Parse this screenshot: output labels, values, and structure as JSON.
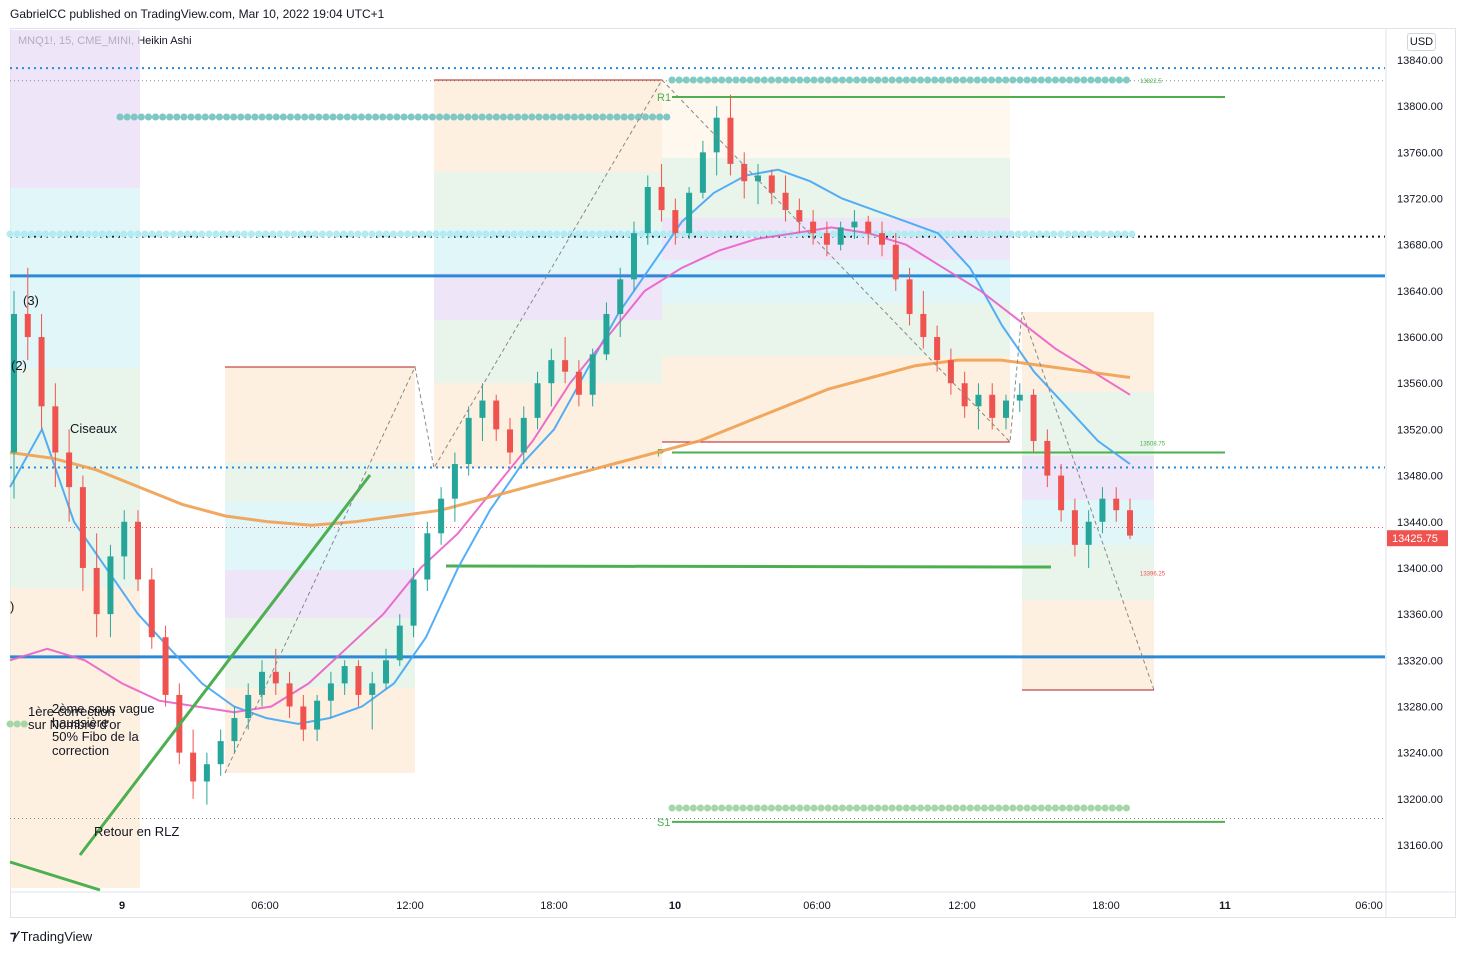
{
  "header": {
    "published": "GabrielCC published on TradingView.com, Mar 10, 2022 19:04 UTC+1"
  },
  "symbol": {
    "label": "MNQ1!, 15, CME_MINI, Heikin Ashi"
  },
  "currency": "USD",
  "footer": {
    "brand": "TradingView",
    "logo_icon": "tradingview-logo-icon"
  },
  "colors": {
    "bull": "#26a69a",
    "bear": "#ef5350",
    "ma_fast": "#42a5f5",
    "ma_mid": "#e95fc8",
    "ma_slow": "#f0a050",
    "level_blue": "#2a8ad8",
    "green_line": "#4caf50"
  },
  "chart_data": {
    "type": "candlestick",
    "chart_style": "Heikin Ashi",
    "y_axis": {
      "min": 13120,
      "max": 13870,
      "ticks": [
        13840,
        13800,
        13760,
        13720,
        13680,
        13640,
        13600,
        13560,
        13520,
        13480,
        13440,
        13400,
        13360,
        13320,
        13280,
        13240,
        13200,
        13160
      ],
      "tick_labels": [
        "13840.00",
        "13800.00",
        "13760.00",
        "13720.00",
        "13680.00",
        "13640.00",
        "13600.00",
        "13560.00",
        "13520.00",
        "13480.00",
        "13440.00",
        "13400.00",
        "13360.00",
        "13320.00",
        "13280.00",
        "13240.00",
        "13200.00",
        "13160.00"
      ]
    },
    "x_axis": {
      "ticks": [
        {
          "label": "9",
          "bold": true
        },
        {
          "label": "06:00"
        },
        {
          "label": "12:00"
        },
        {
          "label": "18:00"
        },
        {
          "label": "10",
          "bold": true
        },
        {
          "label": "06:00"
        },
        {
          "label": "12:00"
        },
        {
          "label": "18:00"
        },
        {
          "label": "11",
          "bold": true
        },
        {
          "label": "06:00"
        }
      ]
    },
    "last_price": {
      "value": 13425.75,
      "label": "13425.75"
    },
    "pivots": [
      {
        "name": "R1",
        "value": 13808
      },
      {
        "name": "P",
        "value": 13500
      },
      {
        "name": "S1",
        "value": 13180
      }
    ],
    "level_labels": [
      {
        "text": "13822.5",
        "value": 13822.5
      },
      {
        "text": "13508.75",
        "value": 13508.75
      },
      {
        "text": "13396.25",
        "value": 13396.25
      }
    ],
    "annotations": [
      {
        "text": "(3)"
      },
      {
        "text": "(2)"
      },
      {
        "text": ")"
      },
      {
        "text": "Ciseaux"
      },
      {
        "text": "1ère correction"
      },
      {
        "text": "sur Nombre d'or"
      },
      {
        "text": "2ème sous vague"
      },
      {
        "text": "haussière"
      },
      {
        "text": "50% Fibo de la"
      },
      {
        "text": "correction"
      },
      {
        "text": "Retour en RLZ"
      }
    ],
    "horizontal_levels": [
      {
        "value": 13833,
        "style": "dotted",
        "color": "#2a8ad8"
      },
      {
        "value": 13822,
        "style": "dotted-thin",
        "color": "#888888"
      },
      {
        "value": 13687,
        "style": "dotted",
        "color": "#131722"
      },
      {
        "value": 13653,
        "style": "solid",
        "color": "#2a8ad8"
      },
      {
        "value": 13487,
        "style": "dotted",
        "color": "#2a8ad8"
      },
      {
        "value": 13435,
        "style": "dotted-thin",
        "color": "#ef5350"
      },
      {
        "value": 13323,
        "style": "solid",
        "color": "#2a8ad8"
      },
      {
        "value": 13183,
        "style": "dotted-thin",
        "color": "#888888"
      }
    ],
    "candles": [
      [
        13500,
        13640,
        13460,
        13620
      ],
      [
        13620,
        13660,
        13580,
        13600
      ],
      [
        13600,
        13620,
        13520,
        13540
      ],
      [
        13540,
        13560,
        13470,
        13500
      ],
      [
        13500,
        13520,
        13440,
        13470
      ],
      [
        13470,
        13480,
        13380,
        13400
      ],
      [
        13400,
        13430,
        13340,
        13360
      ],
      [
        13360,
        13420,
        13340,
        13410
      ],
      [
        13410,
        13450,
        13390,
        13440
      ],
      [
        13440,
        13450,
        13380,
        13390
      ],
      [
        13390,
        13400,
        13330,
        13340
      ],
      [
        13340,
        13350,
        13280,
        13290
      ],
      [
        13290,
        13300,
        13230,
        13240
      ],
      [
        13240,
        13260,
        13200,
        13215
      ],
      [
        13215,
        13240,
        13195,
        13230
      ],
      [
        13230,
        13260,
        13220,
        13250
      ],
      [
        13250,
        13280,
        13240,
        13270
      ],
      [
        13270,
        13300,
        13260,
        13290
      ],
      [
        13290,
        13320,
        13280,
        13310
      ],
      [
        13310,
        13330,
        13290,
        13300
      ],
      [
        13300,
        13310,
        13270,
        13280
      ],
      [
        13280,
        13290,
        13250,
        13260
      ],
      [
        13260,
        13290,
        13250,
        13285
      ],
      [
        13285,
        13310,
        13270,
        13300
      ],
      [
        13300,
        13320,
        13290,
        13315
      ],
      [
        13315,
        13320,
        13280,
        13290
      ],
      [
        13290,
        13310,
        13260,
        13300
      ],
      [
        13300,
        13330,
        13295,
        13320
      ],
      [
        13320,
        13360,
        13315,
        13350
      ],
      [
        13350,
        13400,
        13340,
        13390
      ],
      [
        13390,
        13440,
        13380,
        13430
      ],
      [
        13430,
        13470,
        13420,
        13460
      ],
      [
        13460,
        13500,
        13440,
        13490
      ],
      [
        13490,
        13540,
        13480,
        13530
      ],
      [
        13530,
        13560,
        13510,
        13545
      ],
      [
        13545,
        13550,
        13510,
        13520
      ],
      [
        13520,
        13530,
        13490,
        13500
      ],
      [
        13500,
        13540,
        13490,
        13530
      ],
      [
        13530,
        13570,
        13520,
        13560
      ],
      [
        13560,
        13590,
        13540,
        13580
      ],
      [
        13580,
        13600,
        13560,
        13570
      ],
      [
        13570,
        13580,
        13540,
        13550
      ],
      [
        13550,
        13590,
        13540,
        13585
      ],
      [
        13585,
        13630,
        13580,
        13620
      ],
      [
        13620,
        13660,
        13600,
        13650
      ],
      [
        13650,
        13700,
        13640,
        13690
      ],
      [
        13690,
        13740,
        13680,
        13730
      ],
      [
        13730,
        13750,
        13700,
        13710
      ],
      [
        13710,
        13720,
        13680,
        13690
      ],
      [
        13690,
        13730,
        13685,
        13725
      ],
      [
        13725,
        13770,
        13720,
        13760
      ],
      [
        13760,
        13800,
        13740,
        13790
      ],
      [
        13790,
        13810,
        13740,
        13750
      ],
      [
        13750,
        13760,
        13720,
        13735
      ],
      [
        13735,
        13750,
        13715,
        13740
      ],
      [
        13740,
        13745,
        13715,
        13725
      ],
      [
        13725,
        13740,
        13700,
        13710
      ],
      [
        13710,
        13720,
        13690,
        13700
      ],
      [
        13700,
        13710,
        13680,
        13690
      ],
      [
        13690,
        13700,
        13670,
        13680
      ],
      [
        13680,
        13700,
        13675,
        13695
      ],
      [
        13695,
        13710,
        13685,
        13700
      ],
      [
        13700,
        13705,
        13680,
        13690
      ],
      [
        13690,
        13700,
        13670,
        13680
      ],
      [
        13680,
        13690,
        13640,
        13650
      ],
      [
        13650,
        13660,
        13610,
        13620
      ],
      [
        13620,
        13640,
        13590,
        13600
      ],
      [
        13600,
        13610,
        13570,
        13580
      ],
      [
        13580,
        13590,
        13550,
        13560
      ],
      [
        13560,
        13570,
        13530,
        13540
      ],
      [
        13540,
        13560,
        13520,
        13550
      ],
      [
        13550,
        13560,
        13520,
        13530
      ],
      [
        13530,
        13550,
        13520,
        13545
      ],
      [
        13545,
        13560,
        13535,
        13550
      ],
      [
        13550,
        13555,
        13500,
        13510
      ],
      [
        13510,
        13520,
        13470,
        13480
      ],
      [
        13480,
        13490,
        13440,
        13450
      ],
      [
        13450,
        13460,
        13410,
        13420
      ],
      [
        13420,
        13450,
        13400,
        13440
      ],
      [
        13440,
        13470,
        13430,
        13460
      ],
      [
        13460,
        13470,
        13440,
        13450
      ],
      [
        13450,
        13460,
        13425,
        13428
      ]
    ],
    "moving_averages": [
      {
        "name": "MA fast",
        "color": "#42a5f5",
        "values": [
          13470,
          13520,
          13440,
          13400,
          13360,
          13330,
          13300,
          13280,
          13270,
          13265,
          13270,
          13280,
          13300,
          13340,
          13400,
          13450,
          13490,
          13520,
          13570,
          13620,
          13660,
          13700,
          13725,
          13740,
          13745,
          13735,
          13720,
          13710,
          13700,
          13690,
          13660,
          13610,
          13570,
          13540,
          13510,
          13490
        ]
      },
      {
        "name": "MA mid",
        "color": "#e95fc8",
        "values": [
          13320,
          13330,
          13320,
          13300,
          13285,
          13280,
          13275,
          13280,
          13300,
          13330,
          13360,
          13400,
          13430,
          13470,
          13510,
          13560,
          13600,
          13640,
          13660,
          13675,
          13685,
          13690,
          13695,
          13690,
          13680,
          13660,
          13640,
          13615,
          13590,
          13570,
          13550
        ]
      },
      {
        "name": "MA slow",
        "color": "#f0a050",
        "values": [
          13500,
          13495,
          13485,
          13470,
          13455,
          13445,
          13440,
          13437,
          13440,
          13445,
          13450,
          13460,
          13470,
          13480,
          13490,
          13500,
          13510,
          13525,
          13540,
          13555,
          13565,
          13575,
          13580,
          13580,
          13575,
          13570,
          13565
        ]
      }
    ]
  }
}
